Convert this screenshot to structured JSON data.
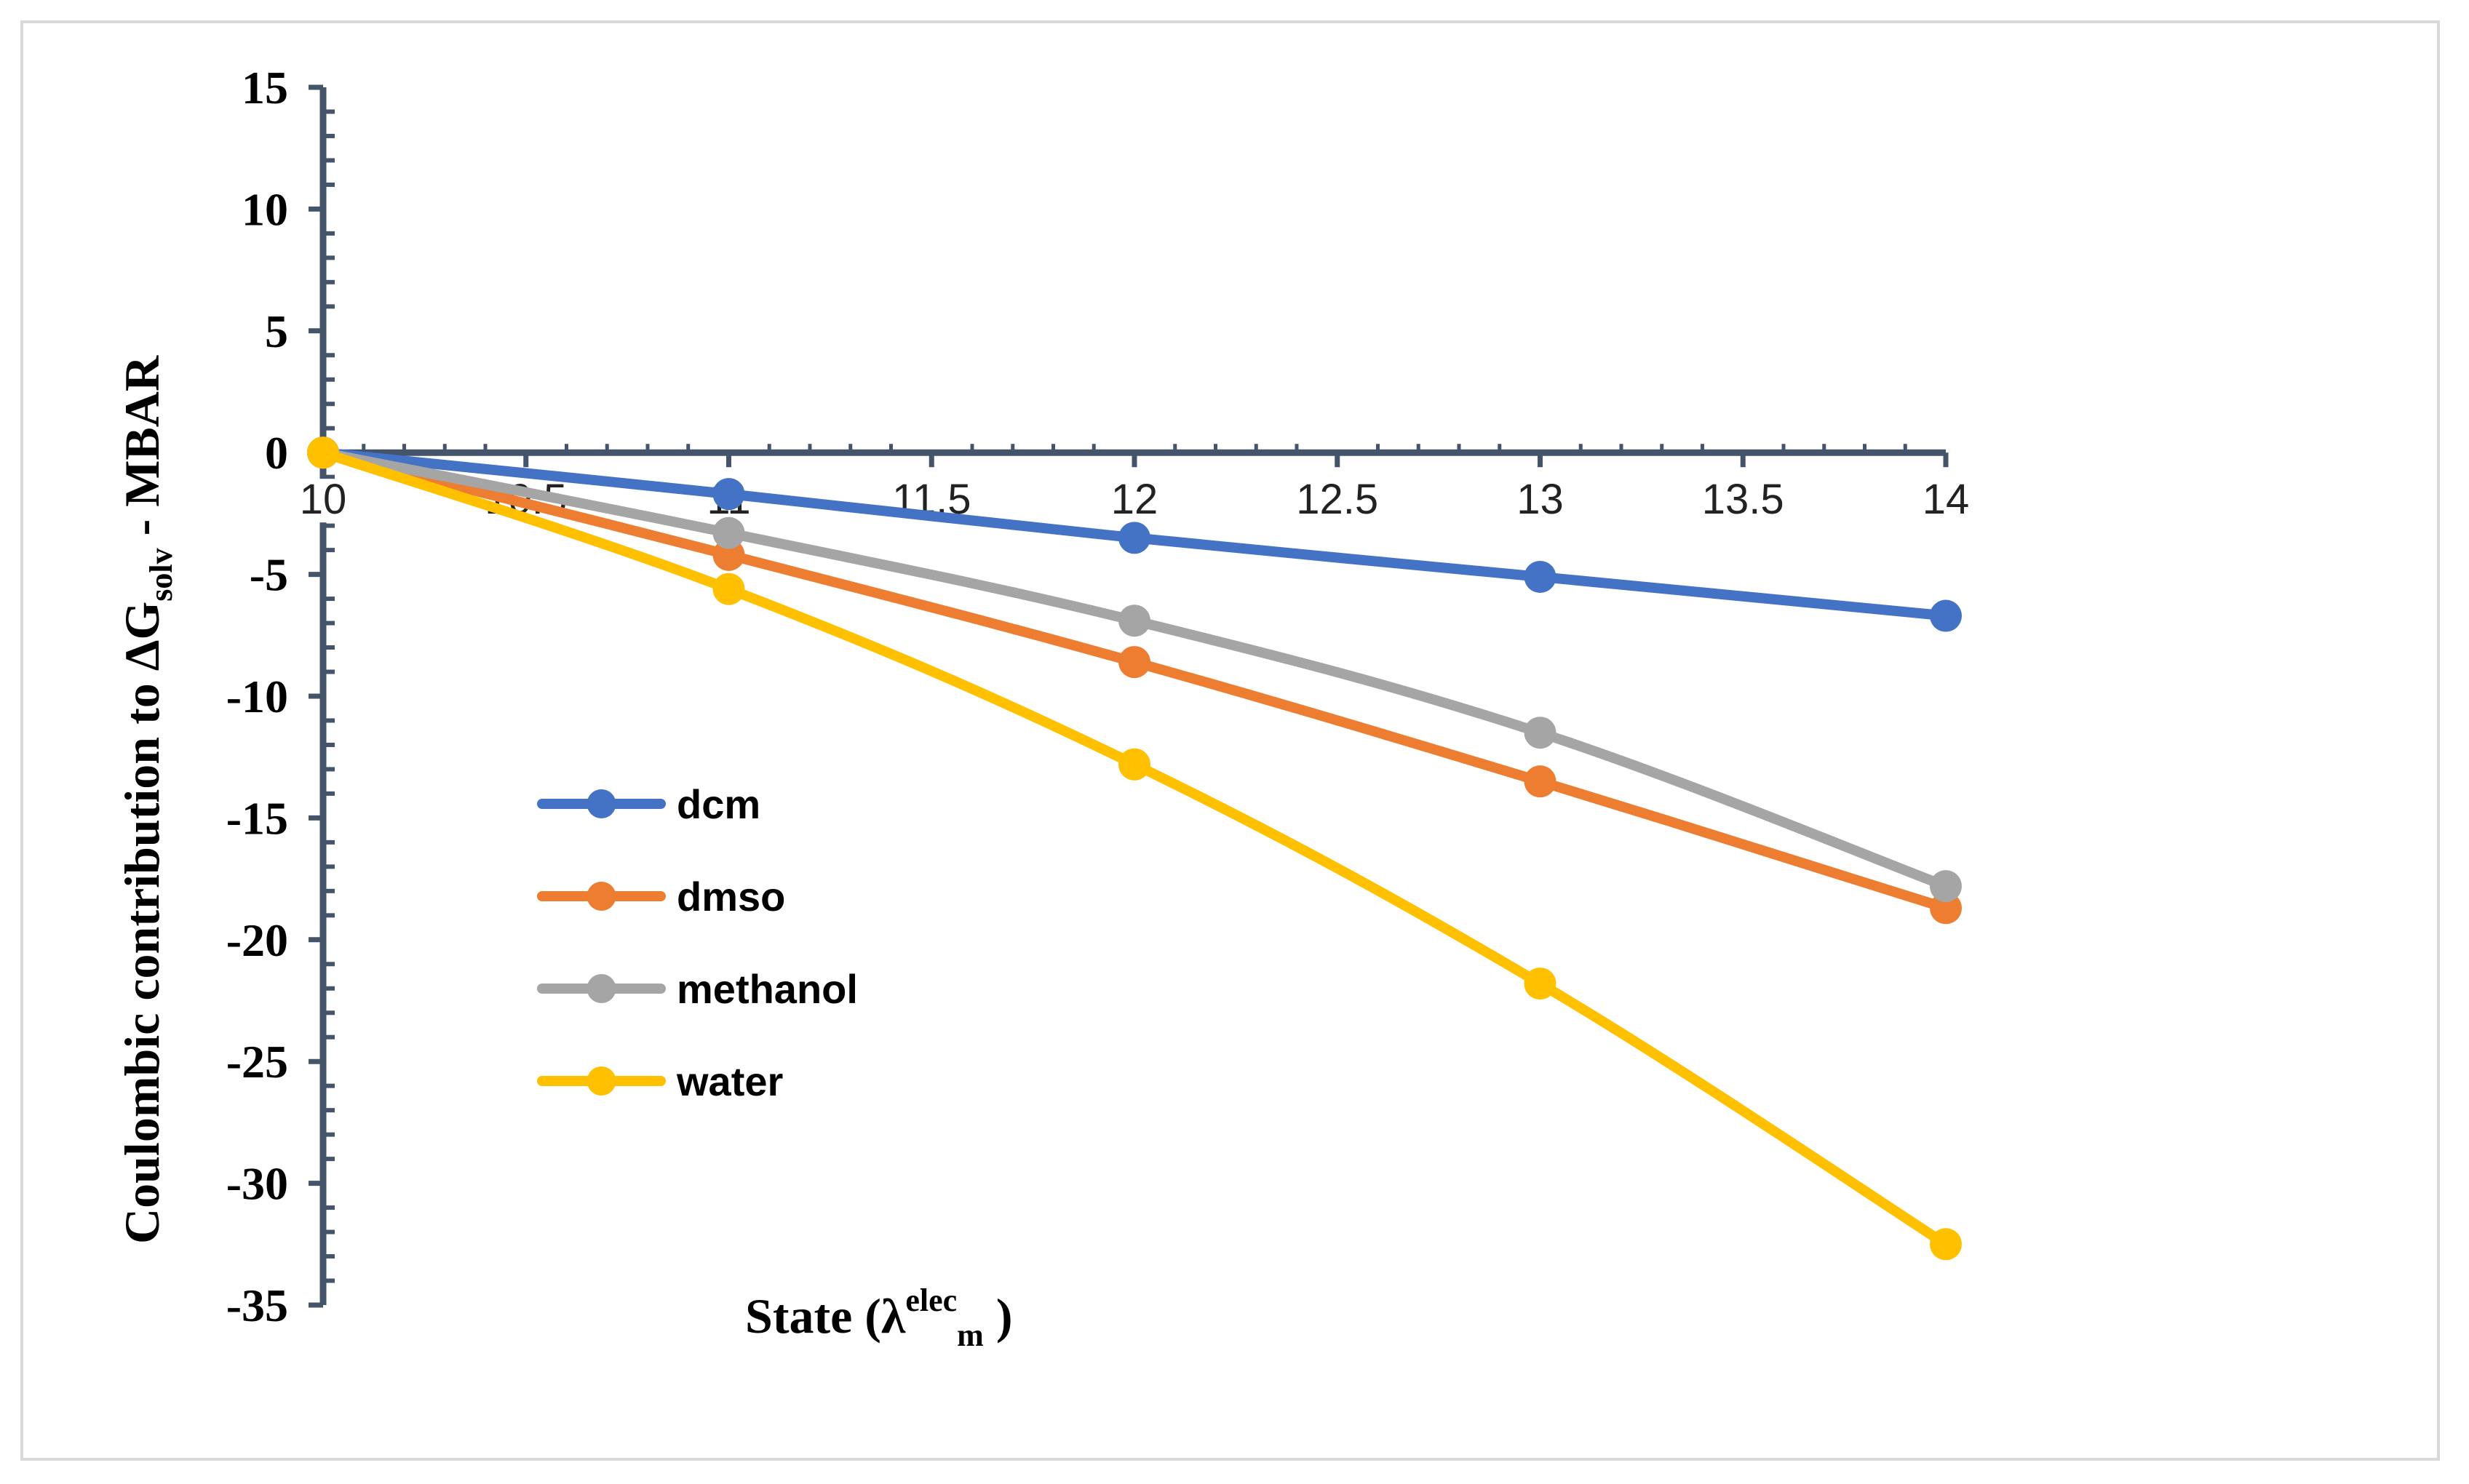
{
  "chart_data": {
    "type": "line",
    "title": "",
    "xlabel": {
      "main": "State (λ",
      "sup": "elec",
      "sub": "m",
      "close": " )"
    },
    "ylabel": {
      "main": "Coulombic contribution to ΔG",
      "sub": "solv",
      "tail": " - MBAR"
    },
    "xlim": [
      10,
      14
    ],
    "ylim": [
      -35,
      15
    ],
    "x_ticks": [
      "10",
      "10.5",
      "11",
      "11.5",
      "12",
      "12.5",
      "13",
      "13.5",
      "14"
    ],
    "y_ticks": [
      "15",
      "10",
      "5",
      "0",
      "-5",
      "-10",
      "-15",
      "-20",
      "-25",
      "-30",
      "-35"
    ],
    "x": [
      10,
      11,
      12,
      13,
      14
    ],
    "series": [
      {
        "name": "dcm",
        "color": "#4472c4",
        "values": [
          0,
          -1.7,
          -3.5,
          -5.1,
          -6.7
        ]
      },
      {
        "name": "dmso",
        "color": "#ed7d31",
        "values": [
          0,
          -4.2,
          -8.6,
          -13.5,
          -18.7
        ]
      },
      {
        "name": "methanol",
        "color": "#a5a5a5",
        "values": [
          0,
          -3.3,
          -6.9,
          -11.5,
          -17.8
        ]
      },
      {
        "name": "water",
        "color": "#ffc000",
        "values": [
          0,
          -5.6,
          -12.8,
          -21.8,
          -32.5
        ]
      }
    ],
    "legend_position": "center-left",
    "grid": false
  }
}
